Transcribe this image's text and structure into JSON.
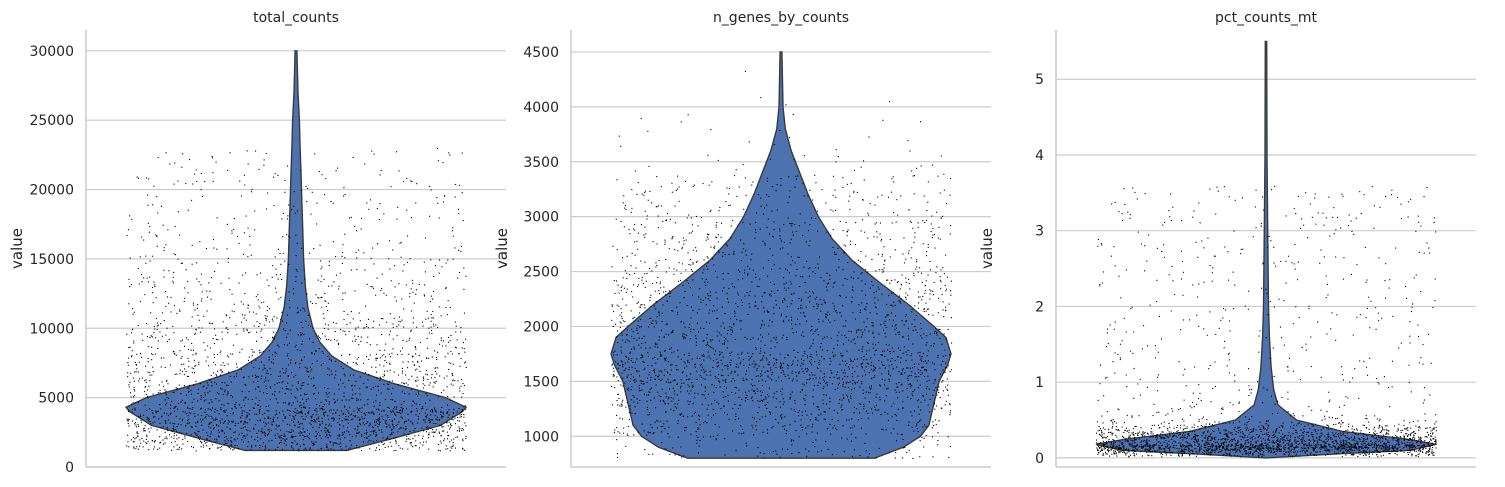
{
  "colors": {
    "violin_fill": "#4c72b0",
    "violin_edge": "#3a3a3a",
    "points": "#000000",
    "grid": "#cccccc"
  },
  "chart_data": [
    {
      "type": "violin",
      "title": "total_counts",
      "xlabel": "",
      "ylabel": "value",
      "ylim": [
        0,
        31500
      ],
      "yticks": [
        0,
        5000,
        10000,
        15000,
        20000,
        25000,
        30000
      ],
      "grid": true,
      "data_min": 1200,
      "data_max": 30000,
      "density": [
        [
          1200,
          0.3
        ],
        [
          2000,
          0.55
        ],
        [
          3000,
          0.85
        ],
        [
          4000,
          0.98
        ],
        [
          4300,
          1.0
        ],
        [
          5000,
          0.88
        ],
        [
          6000,
          0.58
        ],
        [
          7000,
          0.34
        ],
        [
          8000,
          0.21
        ],
        [
          9000,
          0.14
        ],
        [
          10000,
          0.1
        ],
        [
          11500,
          0.07
        ],
        [
          13000,
          0.055
        ],
        [
          15000,
          0.045
        ],
        [
          17000,
          0.04
        ],
        [
          19000,
          0.035
        ],
        [
          21000,
          0.03
        ],
        [
          23000,
          0.024
        ],
        [
          25000,
          0.02
        ],
        [
          27000,
          0.012
        ],
        [
          30000,
          0.005
        ]
      ],
      "points": {
        "count": 2700,
        "low": 1200,
        "high": 23000,
        "mode": 4300,
        "skew": 4000,
        "tail_high": 30000
      }
    },
    {
      "type": "violin",
      "title": "n_genes_by_counts",
      "xlabel": "",
      "ylabel": "value",
      "ylim": [
        720,
        4700
      ],
      "yticks": [
        1000,
        1500,
        2000,
        2500,
        3000,
        3500,
        4000,
        4500
      ],
      "grid": true,
      "data_min": 800,
      "data_max": 4500,
      "density": [
        [
          800,
          0.55
        ],
        [
          900,
          0.72
        ],
        [
          1000,
          0.82
        ],
        [
          1100,
          0.87
        ],
        [
          1300,
          0.9
        ],
        [
          1500,
          0.93
        ],
        [
          1650,
          0.98
        ],
        [
          1750,
          1.0
        ],
        [
          1900,
          0.97
        ],
        [
          2000,
          0.9
        ],
        [
          2200,
          0.75
        ],
        [
          2400,
          0.58
        ],
        [
          2600,
          0.42
        ],
        [
          2800,
          0.3
        ],
        [
          3000,
          0.22
        ],
        [
          3200,
          0.16
        ],
        [
          3400,
          0.11
        ],
        [
          3600,
          0.06
        ],
        [
          3800,
          0.025
        ],
        [
          4000,
          0.012
        ],
        [
          4500,
          0.005
        ]
      ],
      "points": {
        "count": 2700,
        "low": 800,
        "high": 3400,
        "mode": 1750,
        "skew": 600,
        "tail_high": 4500
      }
    },
    {
      "type": "violin",
      "title": "pct_counts_mt",
      "xlabel": "",
      "ylabel": "value",
      "ylim": [
        -0.12,
        5.65
      ],
      "yticks": [
        0,
        1,
        2,
        3,
        4,
        5
      ],
      "grid": true,
      "data_min": 0,
      "data_max": 5.5,
      "density": [
        [
          0,
          0.0
        ],
        [
          0.05,
          0.4
        ],
        [
          0.1,
          0.85
        ],
        [
          0.18,
          1.0
        ],
        [
          0.25,
          0.82
        ],
        [
          0.35,
          0.45
        ],
        [
          0.5,
          0.18
        ],
        [
          0.7,
          0.07
        ],
        [
          0.9,
          0.045
        ],
        [
          1.2,
          0.03
        ],
        [
          1.6,
          0.02
        ],
        [
          2.0,
          0.015
        ],
        [
          3.0,
          0.01
        ],
        [
          4.0,
          0.006
        ],
        [
          5.5,
          0.004
        ]
      ],
      "points": {
        "count": 2700,
        "low": 0.02,
        "high": 3.6,
        "mode": 0.18,
        "skew": 0.12,
        "tail_high": 5.5
      }
    }
  ]
}
